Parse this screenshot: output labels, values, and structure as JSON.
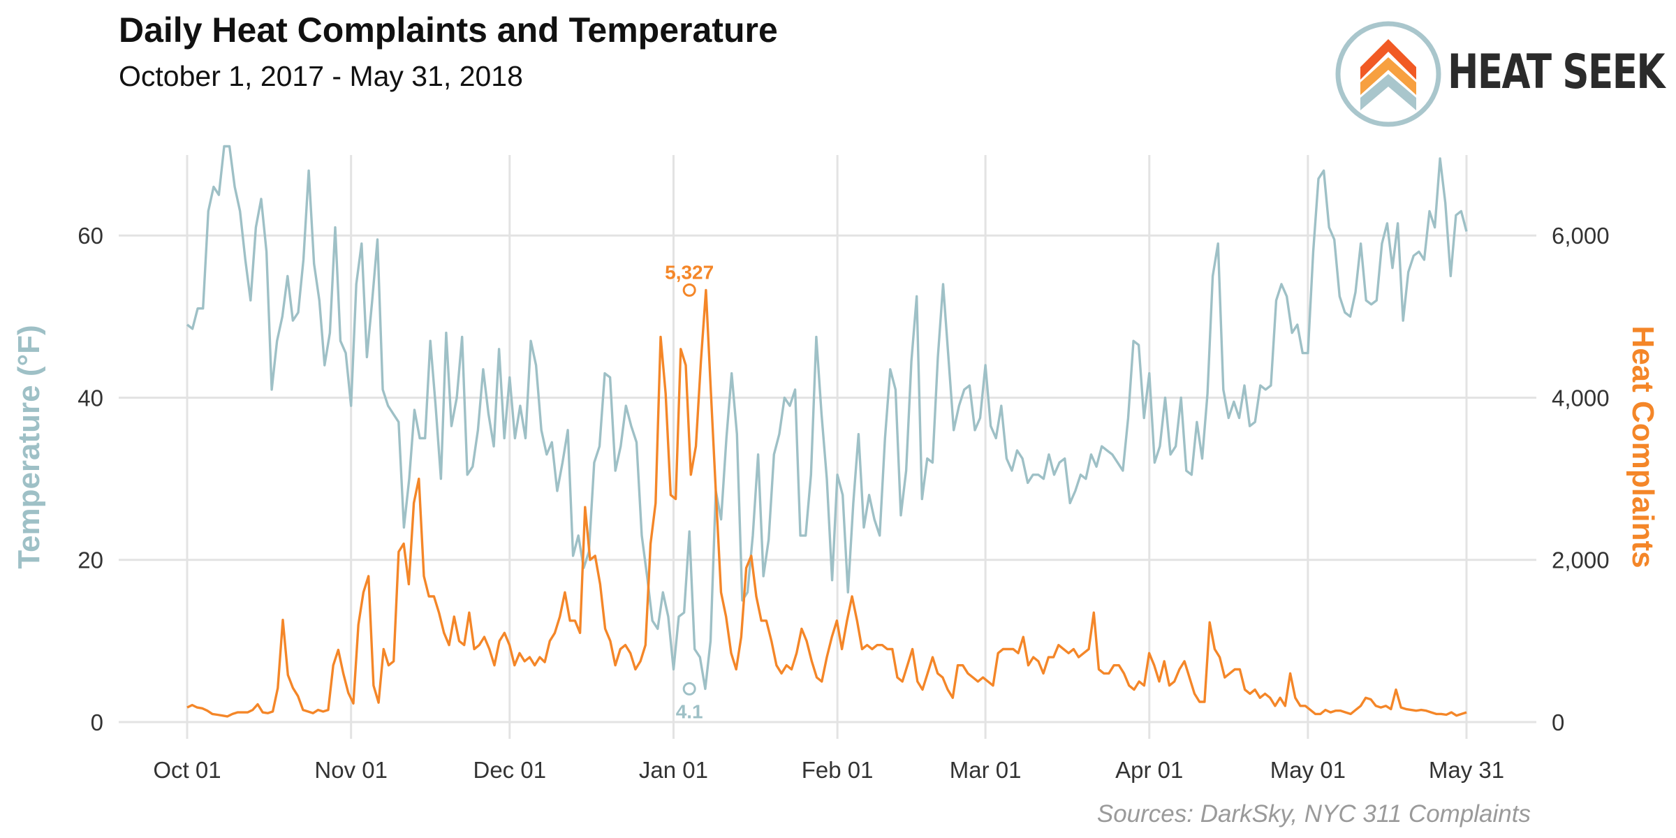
{
  "header": {
    "title": "Daily Heat Complaints and Temperature",
    "subtitle": "October 1, 2017 - May 31, 2018"
  },
  "logo": {
    "text": "HEAT SEEK",
    "icon": "house-chevrons-icon"
  },
  "source": "Sources: DarkSky, NYC 311 Complaints",
  "colors": {
    "temperature": "#9ec0c6",
    "complaints": "#f48628",
    "grid": "#e3e3e3"
  },
  "chart_data": {
    "type": "line",
    "x_start": "2017-10-01",
    "x_end": "2018-05-31",
    "x_ticks": [
      {
        "date": "2017-10-01",
        "label": "Oct 01"
      },
      {
        "date": "2017-11-01",
        "label": "Nov 01"
      },
      {
        "date": "2017-12-01",
        "label": "Dec 01"
      },
      {
        "date": "2018-01-01",
        "label": "Jan 01"
      },
      {
        "date": "2018-02-01",
        "label": "Feb 01"
      },
      {
        "date": "2018-03-01",
        "label": "Mar 01"
      },
      {
        "date": "2018-04-01",
        "label": "Apr 01"
      },
      {
        "date": "2018-05-01",
        "label": "May 01"
      },
      {
        "date": "2018-05-31",
        "label": "May 31"
      }
    ],
    "y_left": {
      "label": "Temperature (°F)",
      "range": [
        0,
        75
      ],
      "ticks": [
        0,
        20,
        40,
        60
      ],
      "tick_labels": [
        "0",
        "20",
        "40",
        "60"
      ]
    },
    "y_right": {
      "label": "Heat Complaints",
      "range": [
        0,
        7500
      ],
      "ticks": [
        0,
        2000,
        4000,
        6000
      ],
      "tick_labels": [
        "0",
        "2,000",
        "4,000",
        "6,000"
      ]
    },
    "grid": true,
    "series": [
      {
        "name": "Temperature (°F)",
        "axis": "left",
        "values": [
          49,
          48.5,
          51,
          51,
          63,
          66,
          65,
          71,
          71,
          66,
          63,
          57,
          52,
          61,
          64.5,
          58,
          41,
          47,
          50,
          55,
          49.5,
          50.5,
          57,
          68,
          56.5,
          52,
          44,
          48,
          61,
          47,
          45.5,
          39,
          54,
          59,
          45,
          52,
          59.5,
          41,
          39,
          38,
          37,
          24,
          30,
          38.5,
          35,
          35,
          47,
          39,
          30,
          48,
          36.5,
          40,
          47.5,
          30.5,
          31.5,
          36,
          43.5,
          38,
          34,
          46,
          35,
          42.5,
          35,
          39,
          35,
          47,
          44,
          36,
          33,
          34.5,
          28.5,
          32,
          36,
          20.5,
          23,
          19,
          21,
          32,
          34,
          43,
          42.5,
          31,
          34,
          39,
          36.5,
          34.5,
          23,
          18,
          12.5,
          11.5,
          16,
          13,
          6.5,
          13,
          13.5,
          23.5,
          9,
          8,
          4.1,
          10,
          28.5,
          25,
          35,
          43,
          35.5,
          15,
          16,
          23,
          33,
          18,
          22.5,
          33,
          35.5,
          40,
          39,
          41,
          23,
          23,
          30.5,
          47.5,
          38,
          30,
          17.5,
          30.5,
          28,
          16,
          27,
          35.5,
          24,
          28,
          25,
          23,
          35,
          43.5,
          41,
          25.5,
          31,
          44.5,
          52.5,
          27.5,
          32.5,
          32,
          45,
          54,
          45,
          36,
          39,
          41,
          41.5,
          36,
          37.5,
          44,
          36.5,
          35,
          39,
          32.5,
          31,
          33.5,
          32.5,
          29.5,
          30.5,
          30.5,
          30,
          33,
          30.5,
          32,
          32.5,
          27,
          28.5,
          30.5,
          30,
          33,
          31.5,
          34,
          33.5,
          33,
          32,
          31,
          37.5,
          47,
          46.5,
          37.5,
          43,
          32,
          34,
          40,
          33,
          34,
          40,
          31,
          30.5,
          37,
          32.5,
          40.5,
          55,
          59,
          41,
          37.5,
          39.5,
          37.5,
          41.5,
          36.5,
          37,
          41.5,
          41,
          41.5,
          52,
          54,
          52.5,
          48,
          49,
          45.5,
          45.5,
          58,
          67,
          68,
          61,
          59.5,
          52.5,
          50.5,
          50,
          53,
          59,
          52,
          51.5,
          52,
          59,
          61.5,
          56,
          61.5,
          49.5,
          55.5,
          57.5,
          58,
          57,
          63,
          61,
          69.5,
          64,
          55,
          62.5,
          63,
          60.5
        ]
      },
      {
        "name": "Heat Complaints",
        "axis": "right",
        "values": [
          180,
          210,
          180,
          170,
          140,
          100,
          90,
          80,
          70,
          100,
          120,
          120,
          120,
          150,
          220,
          120,
          110,
          130,
          420,
          1260,
          580,
          420,
          320,
          150,
          130,
          110,
          150,
          130,
          150,
          700,
          890,
          600,
          360,
          230,
          1200,
          1600,
          1800,
          450,
          240,
          900,
          700,
          750,
          2100,
          2200,
          1700,
          2700,
          3000,
          1800,
          1550,
          1550,
          1350,
          1100,
          950,
          1300,
          1000,
          950,
          1350,
          900,
          950,
          1050,
          900,
          700,
          1000,
          1100,
          950,
          700,
          850,
          750,
          800,
          700,
          800,
          740,
          1000,
          1100,
          1300,
          1600,
          1250,
          1250,
          1100,
          2650,
          2000,
          2050,
          1700,
          1150,
          1000,
          700,
          900,
          950,
          850,
          650,
          750,
          950,
          2200,
          2700,
          4750,
          4050,
          2800,
          2750,
          4600,
          4400,
          3050,
          3400,
          4450,
          5327,
          4050,
          2800,
          1600,
          1300,
          850,
          650,
          1050,
          1900,
          2050,
          1550,
          1250,
          1250,
          1000,
          700,
          600,
          700,
          650,
          850,
          1150,
          1000,
          750,
          550,
          500,
          800,
          1050,
          1250,
          900,
          1250,
          1550,
          1250,
          900,
          950,
          900,
          950,
          950,
          900,
          900,
          550,
          500,
          700,
          900,
          500,
          400,
          600,
          800,
          600,
          550,
          400,
          300,
          700,
          700,
          600,
          550,
          500,
          550,
          500,
          450,
          850,
          900,
          900,
          900,
          850,
          1050,
          700,
          800,
          750,
          600,
          800,
          800,
          950,
          900,
          850,
          900,
          800,
          850,
          900,
          1350,
          650,
          600,
          600,
          700,
          700,
          600,
          450,
          400,
          500,
          450,
          850,
          700,
          500,
          750,
          450,
          500,
          650,
          750,
          550,
          350,
          250,
          250,
          1230,
          900,
          800,
          550,
          600,
          650,
          650,
          400,
          350,
          400,
          300,
          350,
          300,
          200,
          300,
          200,
          600,
          300,
          200,
          200,
          150,
          100,
          100,
          150,
          120,
          140,
          140,
          120,
          100,
          150,
          200,
          300,
          280,
          200,
          180,
          200,
          160,
          400,
          180,
          160,
          150,
          140,
          150,
          140,
          120,
          100,
          100,
          90,
          120,
          80,
          100,
          120
        ]
      }
    ],
    "annotations": [
      {
        "series": "Heat Complaints",
        "date": "2018-01-04",
        "value": 5327,
        "label": "5,327"
      },
      {
        "series": "Temperature (°F)",
        "date": "2018-01-04",
        "value": 4.1,
        "label": "4.1"
      }
    ]
  }
}
